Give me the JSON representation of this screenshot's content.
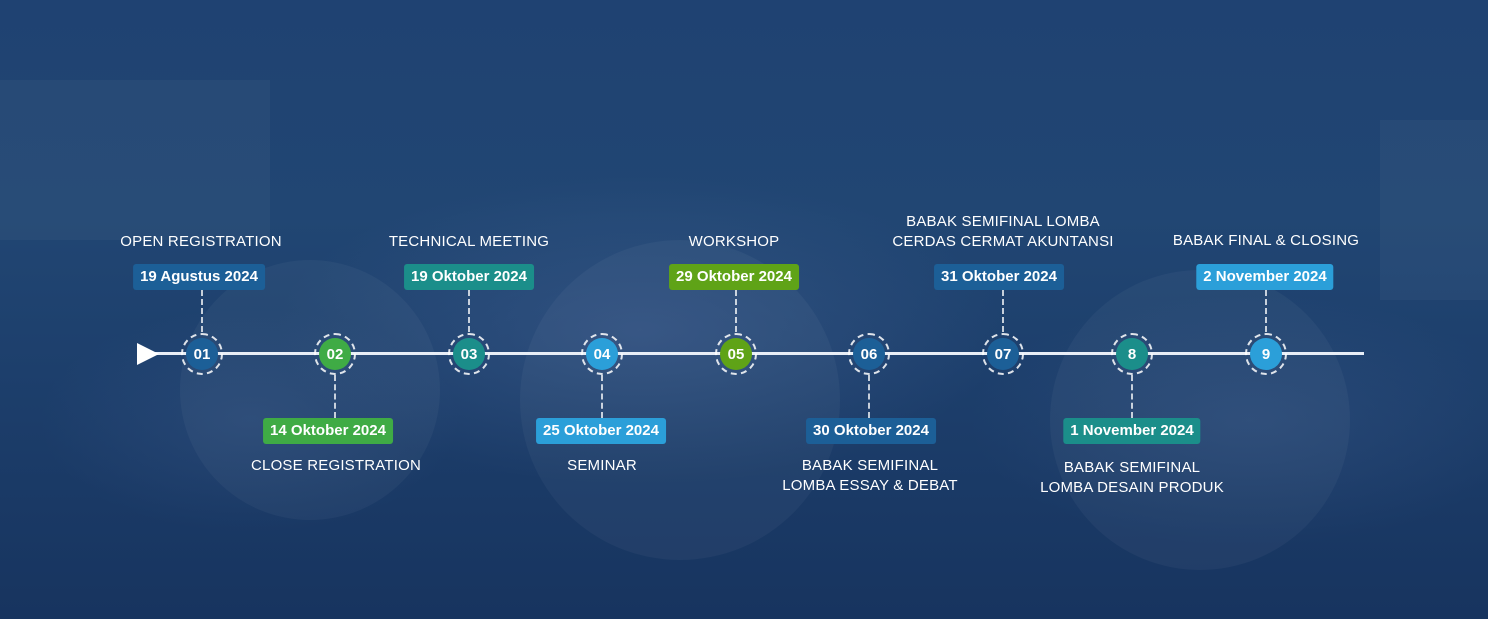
{
  "colors": {
    "dark_blue": "#1c5f97",
    "green": "#3fab45",
    "teal": "#1b8e8a",
    "light_blue": "#2b9fd9",
    "lime": "#5fa317",
    "line": "#e8eef7"
  },
  "milestones": [
    {
      "number": "01",
      "label_1": "OPEN REGISTRATION",
      "label_2": "",
      "date": "19 Agustus 2024",
      "node_color": "#1c5f97",
      "badge_color": "#1c5f97"
    },
    {
      "number": "02",
      "label_1": "CLOSE REGISTRATION",
      "label_2": "",
      "date": "14 Oktober 2024",
      "node_color": "#3fab45",
      "badge_color": "#3fab45"
    },
    {
      "number": "03",
      "label_1": "TECHNICAL MEETING",
      "label_2": "",
      "date": "19 Oktober 2024",
      "node_color": "#1b8e8a",
      "badge_color": "#1b8e8a"
    },
    {
      "number": "04",
      "label_1": "SEMINAR",
      "label_2": "",
      "date": "25 Oktober 2024",
      "node_color": "#2b9fd9",
      "badge_color": "#2b9fd9"
    },
    {
      "number": "05",
      "label_1": "WORKSHOP",
      "label_2": "",
      "date": "29 Oktober 2024",
      "node_color": "#5fa317",
      "badge_color": "#5fa317"
    },
    {
      "number": "06",
      "label_1": "BABAK SEMIFINAL",
      "label_2": "LOMBA ESSAY & DEBAT",
      "date": "30 Oktober 2024",
      "node_color": "#1c5f97",
      "badge_color": "#1c5f97"
    },
    {
      "number": "07",
      "label_1": "BABAK SEMIFINAL LOMBA",
      "label_2": "CERDAS CERMAT AKUNTANSI",
      "date": "31 Oktober 2024",
      "node_color": "#1c5f97",
      "badge_color": "#1c5f97"
    },
    {
      "number": "8",
      "label_1": "BABAK SEMIFINAL",
      "label_2": "LOMBA DESAIN PRODUK",
      "date": "1 November 2024",
      "node_color": "#1b8e8a",
      "badge_color": "#1b8e8a"
    },
    {
      "number": "9",
      "label_1": "BABAK FINAL & CLOSING",
      "label_2": "",
      "date": "2 November 2024",
      "node_color": "#2b9fd9",
      "badge_color": "#2b9fd9"
    }
  ]
}
